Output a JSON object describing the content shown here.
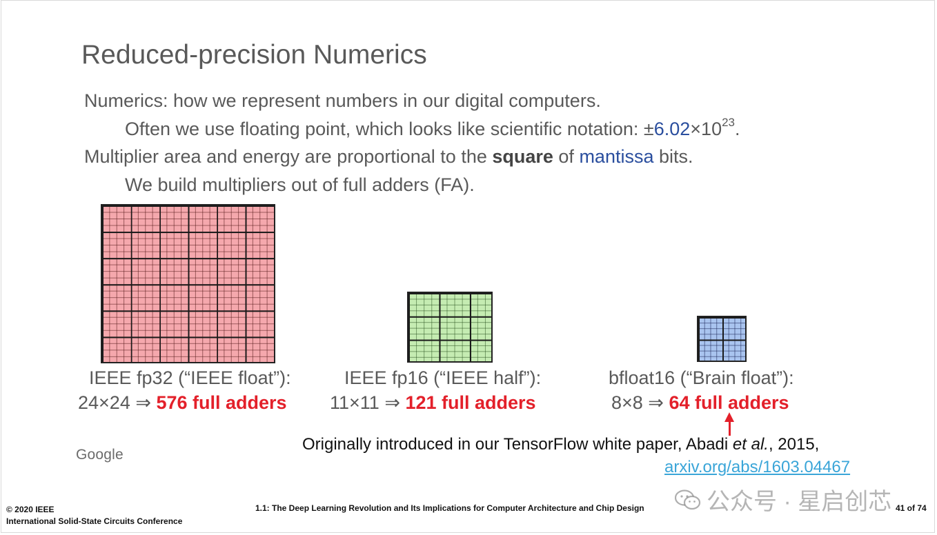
{
  "slide": {
    "title": "Reduced-precision Numerics",
    "bullets": {
      "b1": "Numerics: how we represent numbers in our digital computers.",
      "b2_prefix": "Often we use floating point, which looks like scientific notation: ±",
      "b2_mantissa": "6.02",
      "b2_times_base": "×10",
      "b2_exponent": "23",
      "b2_suffix": ".",
      "b3_prefix": "Multiplier area and energy are proportional to the ",
      "b3_bold": "square",
      "b3_mid": " of ",
      "b3_blue": "mantissa",
      "b3_suffix": " bits.",
      "b4": "We build multipliers out of full adders (FA)."
    },
    "formats": [
      {
        "name": "IEEE fp32 (“IEEE float”):",
        "dims": "24×24 ⇒ ",
        "adders": "576 full adders",
        "grid_color": "#f5a8ad"
      },
      {
        "name": "IEEE fp16 (“IEEE half”):",
        "dims": "11×11 ⇒ ",
        "adders": "121 full adders",
        "grid_color": "#c5ecb2"
      },
      {
        "name": "bfloat16 (“Brain float”):",
        "dims": "8×8 ⇒ ",
        "adders": "64 full adders",
        "grid_color": "#a9c4ef"
      }
    ],
    "logo": "Google",
    "note_prefix": "Originally introduced in our TensorFlow white paper, Abadi ",
    "note_italic": "et al.",
    "note_suffix": ", 2015,",
    "link": "arxiv.org/abs/1603.04467",
    "colors": {
      "accent_red": "#e3202a",
      "link_blue": "#3aa5d8",
      "text_gray": "#595959",
      "mantissa_blue": "#2a4e9e"
    }
  },
  "footer": {
    "copyright": "© 2020 IEEE",
    "conference": "International Solid-State Circuits Conference",
    "session": "1.1: The Deep Learning Revolution and Its Implications for Computer Architecture and Chip Design",
    "page": "41 of 74"
  },
  "watermark": {
    "text": "公众号 · 星启创芯",
    "icon": "wechat-icon"
  }
}
